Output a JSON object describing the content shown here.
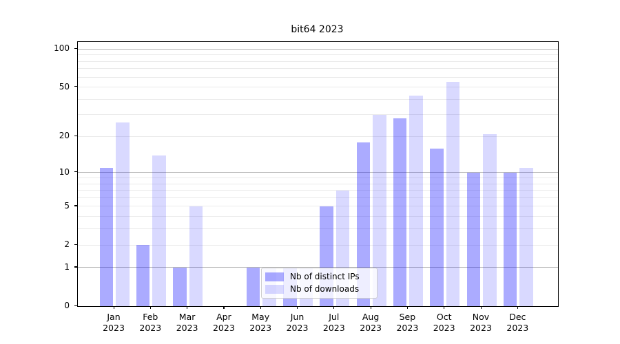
{
  "title": "bit64 2023",
  "colors": {
    "series_ips": "rgba(0,0,255,0.33)",
    "series_downloads": "rgba(0,0,255,0.15)",
    "series_ips_hex": "#aaaaf8",
    "series_downloads_hex": "#d8d8fa",
    "grid_major": "#b3b3b3",
    "grid_minor": "#eaeaea",
    "spine": "#000000"
  },
  "chart_data": {
    "type": "bar",
    "title": "bit64 2023",
    "categories": [
      "Jan",
      "Feb",
      "Mar",
      "Apr",
      "May",
      "Jun",
      "Jul",
      "Aug",
      "Sep",
      "Oct",
      "Nov",
      "Dec"
    ],
    "category_year": "2023",
    "series": [
      {
        "name": "Nb of distinct IPs",
        "values": [
          11,
          2,
          1,
          0,
          1,
          1,
          5,
          18,
          28,
          16,
          10,
          10
        ]
      },
      {
        "name": "Nb of downloads",
        "values": [
          26,
          14,
          5,
          0,
          1,
          1,
          7,
          30,
          43,
          55,
          21,
          11
        ]
      }
    ],
    "xlabel": "",
    "ylabel": "",
    "yscale": "log10(1+x)",
    "ylim": [
      0,
      114
    ],
    "yticks": [
      0,
      1,
      2,
      5,
      10,
      20,
      50,
      100
    ],
    "major_gridlines": [
      1,
      10,
      100
    ],
    "minor_gridlines": [
      2,
      3,
      4,
      5,
      6,
      7,
      8,
      9,
      20,
      30,
      40,
      50,
      60,
      70,
      80,
      90
    ],
    "grid": true,
    "legend_position": "lower center"
  },
  "legend": {
    "items": [
      {
        "label": "Nb of distinct IPs"
      },
      {
        "label": "Nb of downloads"
      }
    ]
  }
}
